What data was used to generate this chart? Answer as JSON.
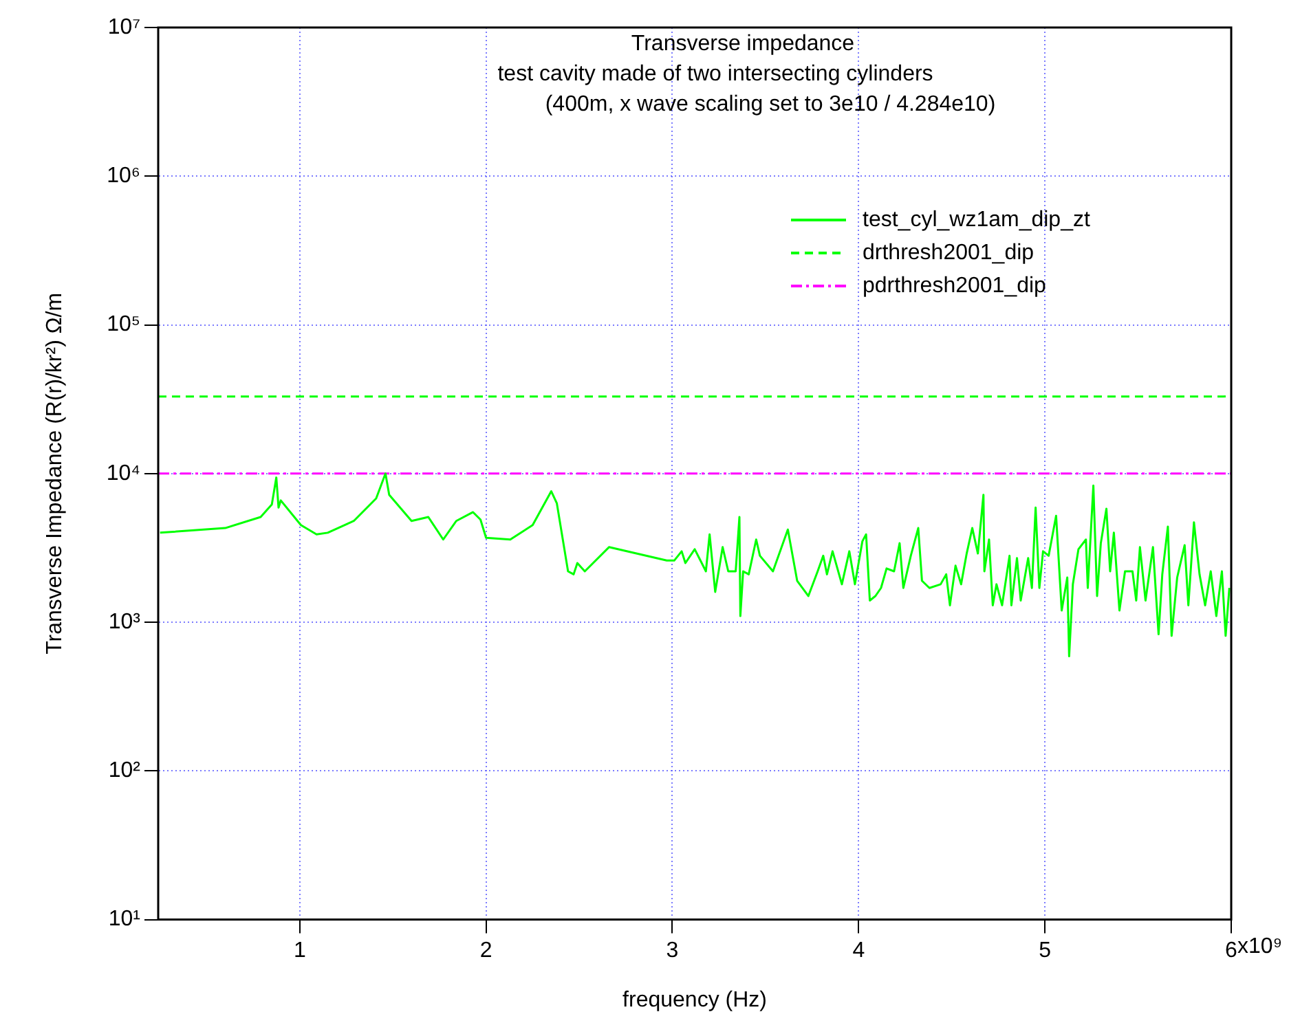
{
  "chart_data": {
    "type": "line",
    "title": "Transverse impedance",
    "subtitle": "test cavity made of two intersecting cylinders",
    "annotations": [
      "(400m, x wave scaling set to 3e10 / 4.284e10)",
      "x10⁹"
    ],
    "xlabel": "frequency (Hz)",
    "ylabel": "Transverse Impedance (R(r)/kr²) Ω/m",
    "log": "y",
    "grid": true,
    "legend": "top right",
    "xlim": [
      0.24,
      6
    ],
    "xticks": [
      1,
      2,
      3,
      4,
      5,
      6
    ],
    "ylim": [
      10,
      10000000
    ],
    "yticks": [
      {
        "value": 10,
        "label": "10¹"
      },
      {
        "value": 100,
        "label": "10²"
      },
      {
        "value": 1000,
        "label": "10³"
      },
      {
        "value": 10000,
        "label": "10⁴"
      },
      {
        "value": 100000,
        "label": "10⁵"
      },
      {
        "value": 1000000,
        "label": "10⁶"
      },
      {
        "value": 10000000,
        "label": "10⁷"
      }
    ],
    "series": [
      {
        "name": "test_cyl_wz1am_dip_zt",
        "color": "#00ff00",
        "line_style": "solid",
        "x": [
          0.25,
          0.6,
          0.79,
          0.85,
          0.874,
          0.886,
          0.898,
          1.006,
          1.09,
          1.15,
          1.29,
          1.41,
          1.46,
          1.48,
          1.6,
          1.69,
          1.77,
          1.84,
          1.93,
          1.97,
          2.0,
          2.13,
          2.25,
          2.35,
          2.38,
          2.44,
          2.47,
          2.49,
          2.53,
          2.66,
          2.97,
          3.01,
          3.05,
          3.07,
          3.12,
          3.18,
          3.2,
          3.23,
          3.27,
          3.3,
          3.34,
          3.36,
          3.365,
          3.38,
          3.41,
          3.45,
          3.47,
          3.54,
          3.62,
          3.67,
          3.73,
          3.78,
          3.81,
          3.83,
          3.86,
          3.91,
          3.95,
          3.98,
          4.02,
          4.04,
          4.06,
          4.09,
          4.12,
          4.15,
          4.19,
          4.22,
          4.24,
          4.28,
          4.32,
          4.34,
          4.38,
          4.44,
          4.47,
          4.49,
          4.52,
          4.55,
          4.58,
          4.61,
          4.64,
          4.67,
          4.675,
          4.7,
          4.72,
          4.74,
          4.77,
          4.81,
          4.82,
          4.85,
          4.87,
          4.91,
          4.93,
          4.95,
          4.97,
          4.99,
          5.02,
          5.06,
          5.09,
          5.12,
          5.13,
          5.15,
          5.18,
          5.22,
          5.23,
          5.26,
          5.28,
          5.3,
          5.33,
          5.35,
          5.37,
          5.4,
          5.43,
          5.47,
          5.49,
          5.51,
          5.54,
          5.58,
          5.61,
          5.63,
          5.66,
          5.68,
          5.71,
          5.75,
          5.77,
          5.8,
          5.83,
          5.86,
          5.89,
          5.92,
          5.95,
          5.97,
          5.99
        ],
        "values": [
          4000,
          4300,
          5100,
          6200,
          9400,
          5900,
          6600,
          4500,
          3900,
          4000,
          4800,
          6800,
          10000,
          7200,
          4800,
          5100,
          3600,
          4800,
          5500,
          4900,
          3700,
          3600,
          4500,
          7600,
          6300,
          2200,
          2100,
          2500,
          2200,
          3200,
          2600,
          2600,
          3000,
          2500,
          3100,
          2200,
          3900,
          1600,
          3200,
          2200,
          2200,
          5100,
          1100,
          2200,
          2100,
          3600,
          2800,
          2200,
          4200,
          1900,
          1500,
          2200,
          2800,
          2100,
          3000,
          1800,
          3000,
          1800,
          3500,
          3900,
          1400,
          1500,
          1700,
          2300,
          2200,
          3400,
          1700,
          2800,
          4300,
          1900,
          1700,
          1800,
          2100,
          1300,
          2400,
          1800,
          2900,
          4300,
          2900,
          7200,
          2200,
          3600,
          1300,
          1800,
          1300,
          2800,
          1300,
          2700,
          1400,
          2700,
          1700,
          5900,
          1700,
          3000,
          2800,
          5200,
          1200,
          2000,
          590,
          1800,
          3100,
          3600,
          1700,
          8300,
          1500,
          3400,
          5800,
          2200,
          4000,
          1200,
          2200,
          2200,
          1400,
          3200,
          1400,
          3200,
          830,
          2100,
          4400,
          810,
          2000,
          3300,
          1300,
          4700,
          2100,
          1300,
          2200,
          1100,
          2200,
          810,
          1700
        ]
      },
      {
        "name": "drthresh2001_dip",
        "color": "#00ff00",
        "line_style": "dashed",
        "x": [
          0.24,
          6
        ],
        "values": [
          33000,
          33000
        ]
      },
      {
        "name": "pdrthresh2001_dip",
        "color": "#ff00ff",
        "line_style": "dotted",
        "x": [
          0.24,
          6
        ],
        "values": [
          10000,
          10000
        ]
      }
    ]
  }
}
